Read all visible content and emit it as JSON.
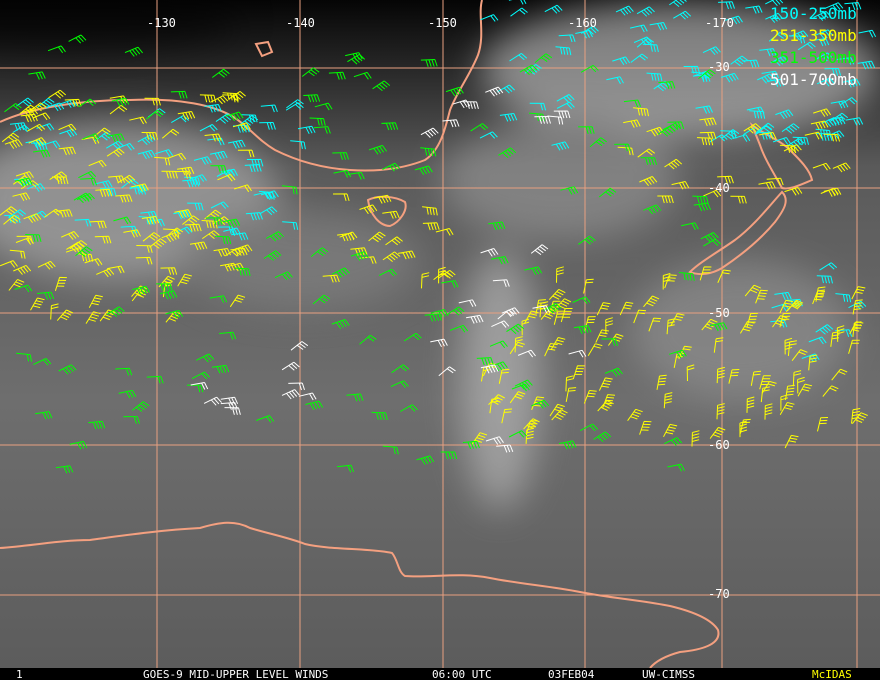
{
  "map": {
    "longitude_labels": [
      "-130",
      "-140",
      "-150",
      "-160",
      "-170"
    ],
    "latitude_labels": [
      "-30",
      "-40",
      "-50",
      "-60",
      "-70"
    ],
    "legend": [
      {
        "label": "150-250mb",
        "color": "#00ffff"
      },
      {
        "label": "251-350mb",
        "color": "#ffff00"
      },
      {
        "label": "351-500mb",
        "color": "#00ff00"
      },
      {
        "label": "501-700mb",
        "color": "#ffffff"
      }
    ],
    "footer": {
      "frame": "1",
      "title": "GOES-9 MID-UPPER LEVEL WINDS",
      "time": "06:00 UTC",
      "date": "03FEB04",
      "source": "UW-CIMSS",
      "software": "McIDAS"
    }
  }
}
